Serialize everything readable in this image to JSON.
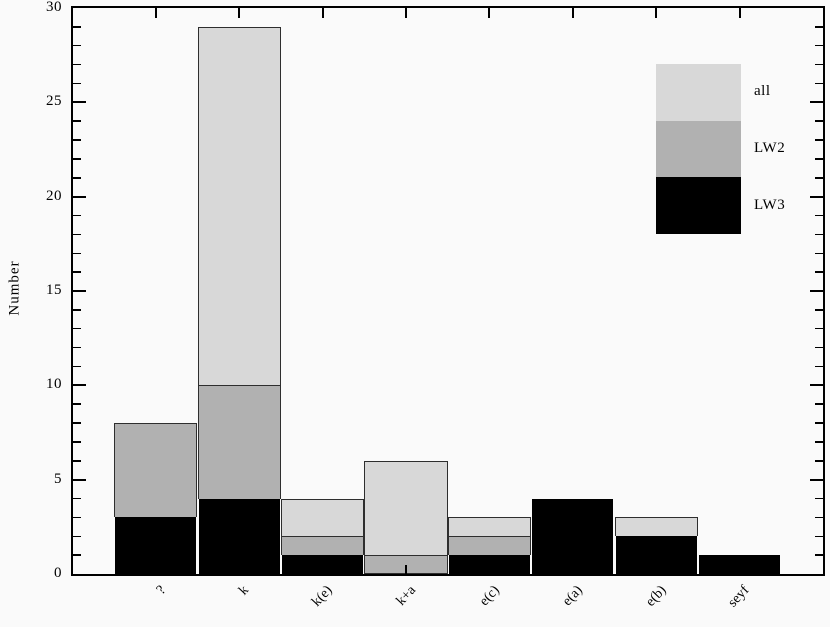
{
  "figure": {
    "background_color": "#fafafa",
    "frame_color": "#000000",
    "y_axis_title": "Number"
  },
  "chart_data": {
    "type": "bar",
    "bar_mode": "overlay",
    "title": "",
    "xlabel": "",
    "ylabel": "Number",
    "categories": [
      "?",
      "k",
      "k(e)",
      "k+a",
      "e(c)",
      "e(a)",
      "e(b)",
      "seyf"
    ],
    "series": [
      {
        "name": "all",
        "color": "#d8d8d8",
        "values": [
          8,
          29,
          4,
          6,
          3,
          4,
          3,
          1
        ]
      },
      {
        "name": "LW2",
        "color": "#b1b1b1",
        "values": [
          8,
          10,
          2,
          1,
          2,
          4,
          2,
          1
        ]
      },
      {
        "name": "LW3",
        "color": "#000000",
        "values": [
          3,
          4,
          1,
          0,
          1,
          4,
          2,
          1
        ]
      }
    ],
    "ylim": [
      0,
      30
    ],
    "y_major_tick_values": [
      0,
      5,
      10,
      15,
      20,
      25,
      30
    ],
    "y_major_tick_labels": [
      "0",
      "5",
      "10",
      "15",
      "20",
      "25",
      "30"
    ],
    "y_minor_tick_step": 1,
    "grid": false,
    "legend": {
      "position": "upper-right",
      "entries": [
        {
          "label": "all",
          "color": "#d8d8d8"
        },
        {
          "label": "LW2",
          "color": "#b1b1b1"
        },
        {
          "label": "LW3",
          "color": "#000000"
        }
      ]
    }
  }
}
